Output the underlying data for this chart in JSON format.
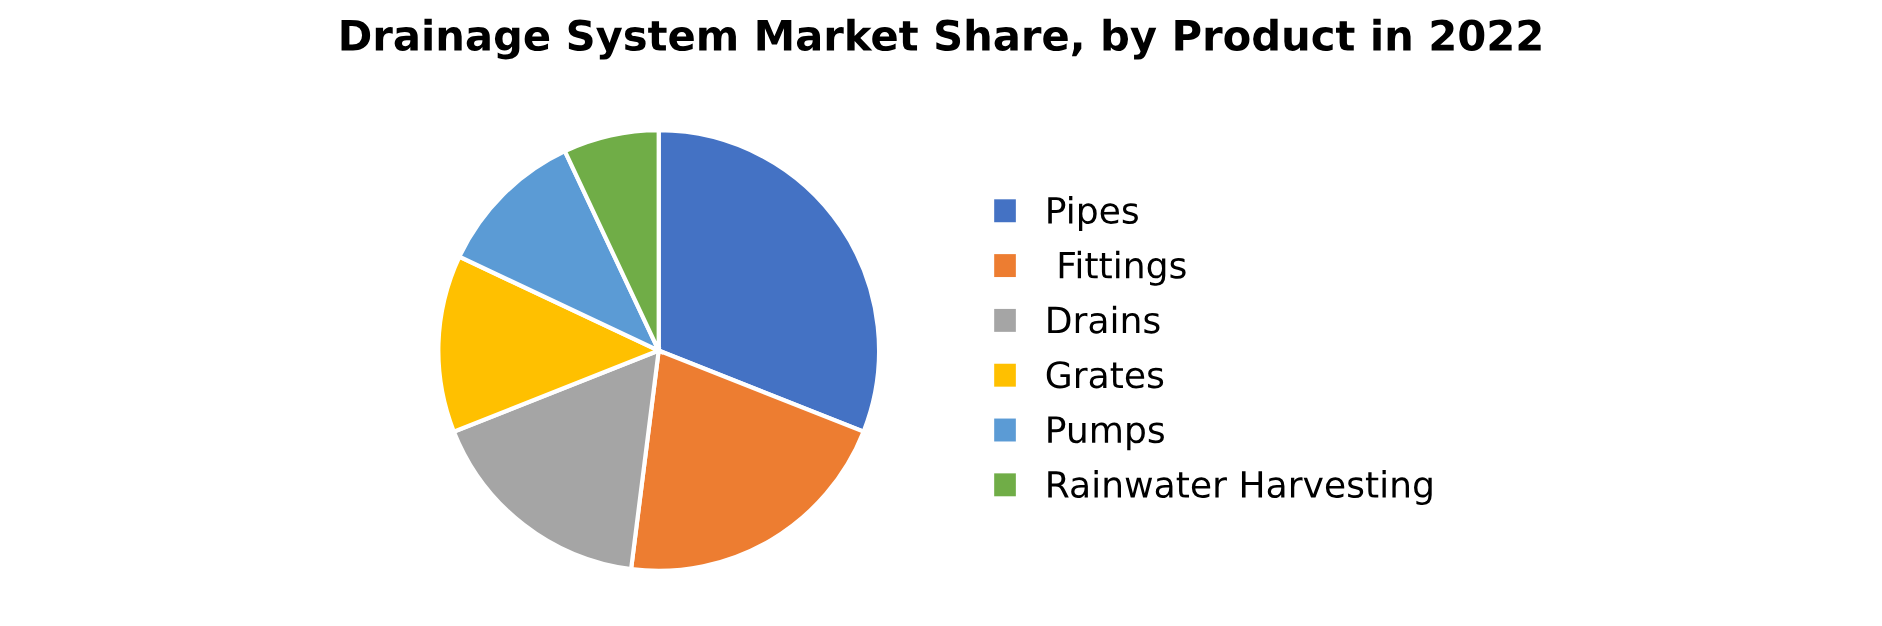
{
  "chart_data": {
    "type": "pie",
    "title": "Drainage System Market Share, by Product in 2022",
    "categories": [
      "Pipes",
      " Fittings",
      "Drains",
      "Grates",
      "Pumps",
      "Rainwater Harvesting"
    ],
    "values": [
      31,
      21,
      17,
      13,
      11,
      7
    ],
    "colors": [
      "#4472c4",
      "#ed7d31",
      "#a5a5a5",
      "#ffc000",
      "#5b9bd5",
      "#70ad47"
    ],
    "legend": "right"
  }
}
